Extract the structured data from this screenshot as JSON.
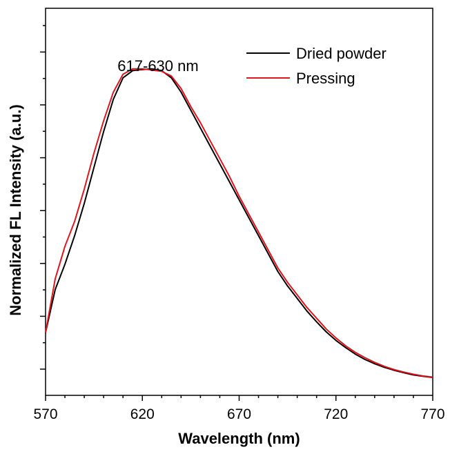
{
  "chart_data": {
    "type": "line",
    "title": "",
    "xlabel": "Wavelength (nm)",
    "ylabel": "Normalized FL Intensity (a.u.)",
    "xlim": [
      570,
      770
    ],
    "ylim": [
      0,
      1
    ],
    "x_ticks": [
      "570",
      "620",
      "670",
      "720",
      "770"
    ],
    "y_tick_labels_shown": false,
    "grid": false,
    "legend_position": "top-right",
    "annotations": [
      {
        "text": "617-630 nm",
        "x": 622,
        "y": 0.95
      }
    ],
    "series": [
      {
        "name": "Dried powder",
        "color": "#000000",
        "x": [
          570,
          575,
          580,
          585,
          590,
          595,
          600,
          605,
          610,
          615,
          620,
          625,
          630,
          635,
          640,
          645,
          650,
          655,
          660,
          665,
          670,
          675,
          680,
          685,
          690,
          695,
          700,
          705,
          710,
          715,
          720,
          725,
          730,
          735,
          740,
          745,
          750,
          755,
          760,
          765,
          770
        ],
        "y": [
          0.15,
          0.27,
          0.34,
          0.42,
          0.51,
          0.61,
          0.71,
          0.8,
          0.86,
          0.88,
          0.883,
          0.885,
          0.88,
          0.86,
          0.82,
          0.77,
          0.72,
          0.67,
          0.62,
          0.57,
          0.52,
          0.47,
          0.42,
          0.37,
          0.32,
          0.28,
          0.245,
          0.21,
          0.18,
          0.152,
          0.128,
          0.108,
          0.09,
          0.075,
          0.063,
          0.053,
          0.045,
          0.038,
          0.032,
          0.028,
          0.025
        ]
      },
      {
        "name": "Pressing",
        "color": "#e0141e",
        "x": [
          570,
          575,
          580,
          585,
          590,
          595,
          600,
          605,
          610,
          615,
          620,
          625,
          630,
          635,
          640,
          645,
          650,
          655,
          660,
          665,
          670,
          675,
          680,
          685,
          690,
          695,
          700,
          705,
          710,
          715,
          720,
          725,
          730,
          735,
          740,
          745,
          750,
          755,
          760,
          765,
          770
        ],
        "y": [
          0.15,
          0.3,
          0.39,
          0.46,
          0.55,
          0.65,
          0.74,
          0.82,
          0.87,
          0.885,
          0.885,
          0.882,
          0.878,
          0.865,
          0.83,
          0.78,
          0.735,
          0.685,
          0.635,
          0.585,
          0.53,
          0.48,
          0.43,
          0.38,
          0.33,
          0.29,
          0.255,
          0.22,
          0.19,
          0.16,
          0.135,
          0.113,
          0.095,
          0.08,
          0.067,
          0.056,
          0.047,
          0.04,
          0.034,
          0.029,
          0.026
        ]
      }
    ]
  }
}
